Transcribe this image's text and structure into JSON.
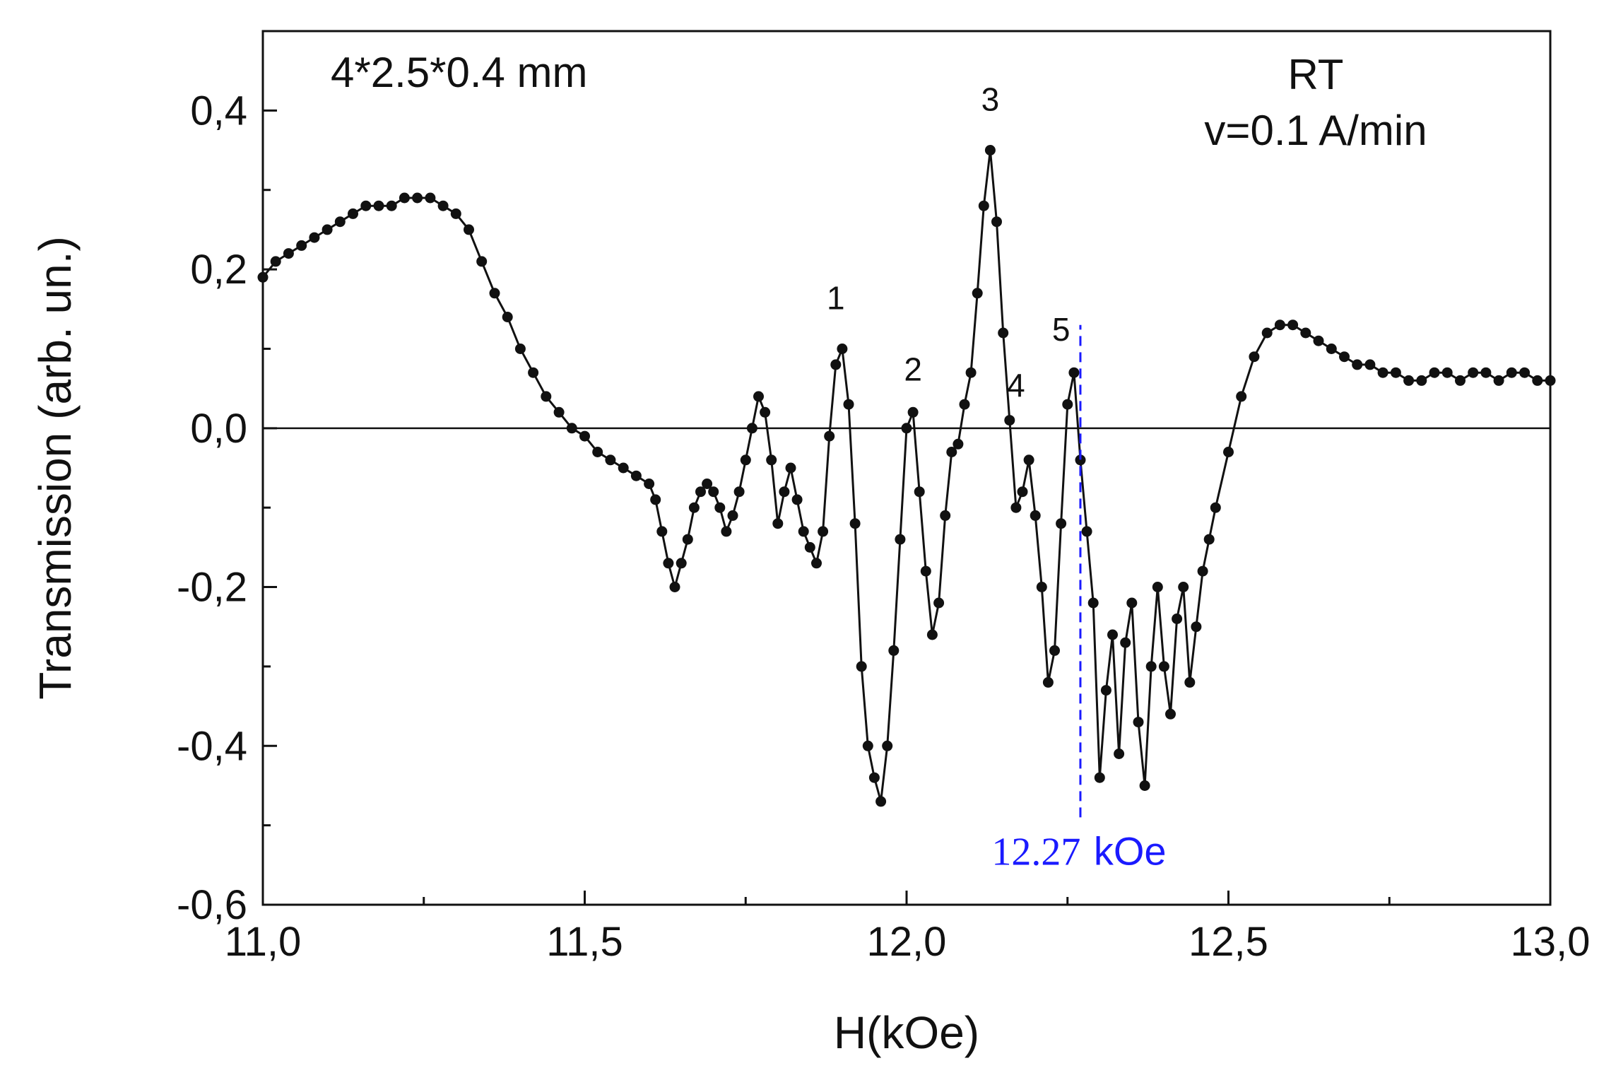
{
  "chart_data": {
    "type": "scatter",
    "title": "",
    "xlabel": "H(kOe)",
    "ylabel": "Transmission (arb. un.)",
    "xlim": [
      11.0,
      13.0
    ],
    "ylim": [
      -0.6,
      0.5
    ],
    "x_ticks": [
      11.0,
      11.5,
      12.0,
      12.5,
      13.0
    ],
    "x_tick_labels": [
      "11,0",
      "11,5",
      "12,0",
      "12,5",
      "13,0"
    ],
    "y_ticks": [
      -0.6,
      -0.4,
      -0.2,
      0.0,
      0.2,
      0.4
    ],
    "y_tick_labels": [
      "-0,6",
      "-0,4",
      "-0,2",
      "0,0",
      "0,2",
      "0,4"
    ],
    "grid": false,
    "zero_line": 0.0,
    "series_color": "#111111",
    "marker_color": "#1a1aff",
    "annotations": {
      "sample": "4*2.5*0.4 mm",
      "condition_line1": "RT",
      "condition_line2": "v=0.1 A/min"
    },
    "peak_labels": [
      {
        "text": "1",
        "x": 11.89,
        "y": 0.15
      },
      {
        "text": "2",
        "x": 12.01,
        "y": 0.06
      },
      {
        "text": "3",
        "x": 12.13,
        "y": 0.4
      },
      {
        "text": "4",
        "x": 12.17,
        "y": 0.04
      },
      {
        "text": "5",
        "x": 12.24,
        "y": 0.11
      }
    ],
    "marker_line": {
      "x": 12.27,
      "y_from": -0.49,
      "y_to": 0.13,
      "label_number": "12.27",
      "label_unit": "kOe",
      "label_y": -0.53
    },
    "series": [
      {
        "points": [
          [
            11.0,
            0.19
          ],
          [
            11.02,
            0.21
          ],
          [
            11.04,
            0.22
          ],
          [
            11.06,
            0.23
          ],
          [
            11.08,
            0.24
          ],
          [
            11.1,
            0.25
          ],
          [
            11.12,
            0.26
          ],
          [
            11.14,
            0.27
          ],
          [
            11.16,
            0.28
          ],
          [
            11.18,
            0.28
          ],
          [
            11.2,
            0.28
          ],
          [
            11.22,
            0.29
          ],
          [
            11.24,
            0.29
          ],
          [
            11.26,
            0.29
          ],
          [
            11.28,
            0.28
          ],
          [
            11.3,
            0.27
          ],
          [
            11.32,
            0.25
          ],
          [
            11.34,
            0.21
          ],
          [
            11.36,
            0.17
          ],
          [
            11.38,
            0.14
          ],
          [
            11.4,
            0.1
          ],
          [
            11.42,
            0.07
          ],
          [
            11.44,
            0.04
          ],
          [
            11.46,
            0.02
          ],
          [
            11.48,
            0.0
          ],
          [
            11.5,
            -0.01
          ],
          [
            11.52,
            -0.03
          ],
          [
            11.54,
            -0.04
          ],
          [
            11.56,
            -0.05
          ],
          [
            11.58,
            -0.06
          ],
          [
            11.6,
            -0.07
          ],
          [
            11.61,
            -0.09
          ],
          [
            11.62,
            -0.13
          ],
          [
            11.63,
            -0.17
          ],
          [
            11.64,
            -0.2
          ],
          [
            11.65,
            -0.17
          ],
          [
            11.66,
            -0.14
          ],
          [
            11.67,
            -0.1
          ],
          [
            11.68,
            -0.08
          ],
          [
            11.69,
            -0.07
          ],
          [
            11.7,
            -0.08
          ],
          [
            11.71,
            -0.1
          ],
          [
            11.72,
            -0.13
          ],
          [
            11.73,
            -0.11
          ],
          [
            11.74,
            -0.08
          ],
          [
            11.75,
            -0.04
          ],
          [
            11.76,
            0.0
          ],
          [
            11.77,
            0.04
          ],
          [
            11.78,
            0.02
          ],
          [
            11.79,
            -0.04
          ],
          [
            11.8,
            -0.12
          ],
          [
            11.81,
            -0.08
          ],
          [
            11.82,
            -0.05
          ],
          [
            11.83,
            -0.09
          ],
          [
            11.84,
            -0.13
          ],
          [
            11.85,
            -0.15
          ],
          [
            11.86,
            -0.17
          ],
          [
            11.87,
            -0.13
          ],
          [
            11.88,
            -0.01
          ],
          [
            11.89,
            0.08
          ],
          [
            11.9,
            0.1
          ],
          [
            11.91,
            0.03
          ],
          [
            11.92,
            -0.12
          ],
          [
            11.93,
            -0.3
          ],
          [
            11.94,
            -0.4
          ],
          [
            11.95,
            -0.44
          ],
          [
            11.96,
            -0.47
          ],
          [
            11.97,
            -0.4
          ],
          [
            11.98,
            -0.28
          ],
          [
            11.99,
            -0.14
          ],
          [
            12.0,
            0.0
          ],
          [
            12.01,
            0.02
          ],
          [
            12.02,
            -0.08
          ],
          [
            12.03,
            -0.18
          ],
          [
            12.04,
            -0.26
          ],
          [
            12.05,
            -0.22
          ],
          [
            12.06,
            -0.11
          ],
          [
            12.07,
            -0.03
          ],
          [
            12.08,
            -0.02
          ],
          [
            12.09,
            0.03
          ],
          [
            12.1,
            0.07
          ],
          [
            12.11,
            0.17
          ],
          [
            12.12,
            0.28
          ],
          [
            12.13,
            0.35
          ],
          [
            12.14,
            0.26
          ],
          [
            12.15,
            0.12
          ],
          [
            12.16,
            0.01
          ],
          [
            12.17,
            -0.1
          ],
          [
            12.18,
            -0.08
          ],
          [
            12.19,
            -0.04
          ],
          [
            12.2,
            -0.11
          ],
          [
            12.21,
            -0.2
          ],
          [
            12.22,
            -0.32
          ],
          [
            12.23,
            -0.28
          ],
          [
            12.24,
            -0.12
          ],
          [
            12.25,
            0.03
          ],
          [
            12.26,
            0.07
          ],
          [
            12.27,
            -0.04
          ],
          [
            12.28,
            -0.13
          ],
          [
            12.29,
            -0.22
          ],
          [
            12.3,
            -0.44
          ],
          [
            12.31,
            -0.33
          ],
          [
            12.32,
            -0.26
          ],
          [
            12.33,
            -0.41
          ],
          [
            12.34,
            -0.27
          ],
          [
            12.35,
            -0.22
          ],
          [
            12.36,
            -0.37
          ],
          [
            12.37,
            -0.45
          ],
          [
            12.38,
            -0.3
          ],
          [
            12.39,
            -0.2
          ],
          [
            12.4,
            -0.3
          ],
          [
            12.41,
            -0.36
          ],
          [
            12.42,
            -0.24
          ],
          [
            12.43,
            -0.2
          ],
          [
            12.44,
            -0.32
          ],
          [
            12.45,
            -0.25
          ],
          [
            12.46,
            -0.18
          ],
          [
            12.47,
            -0.14
          ],
          [
            12.48,
            -0.1
          ],
          [
            12.5,
            -0.03
          ],
          [
            12.52,
            0.04
          ],
          [
            12.54,
            0.09
          ],
          [
            12.56,
            0.12
          ],
          [
            12.58,
            0.13
          ],
          [
            12.6,
            0.13
          ],
          [
            12.62,
            0.12
          ],
          [
            12.64,
            0.11
          ],
          [
            12.66,
            0.1
          ],
          [
            12.68,
            0.09
          ],
          [
            12.7,
            0.08
          ],
          [
            12.72,
            0.08
          ],
          [
            12.74,
            0.07
          ],
          [
            12.76,
            0.07
          ],
          [
            12.78,
            0.06
          ],
          [
            12.8,
            0.06
          ],
          [
            12.82,
            0.07
          ],
          [
            12.84,
            0.07
          ],
          [
            12.86,
            0.06
          ],
          [
            12.88,
            0.07
          ],
          [
            12.9,
            0.07
          ],
          [
            12.92,
            0.06
          ],
          [
            12.94,
            0.07
          ],
          [
            12.96,
            0.07
          ],
          [
            12.98,
            0.06
          ],
          [
            13.0,
            0.06
          ]
        ]
      }
    ]
  }
}
